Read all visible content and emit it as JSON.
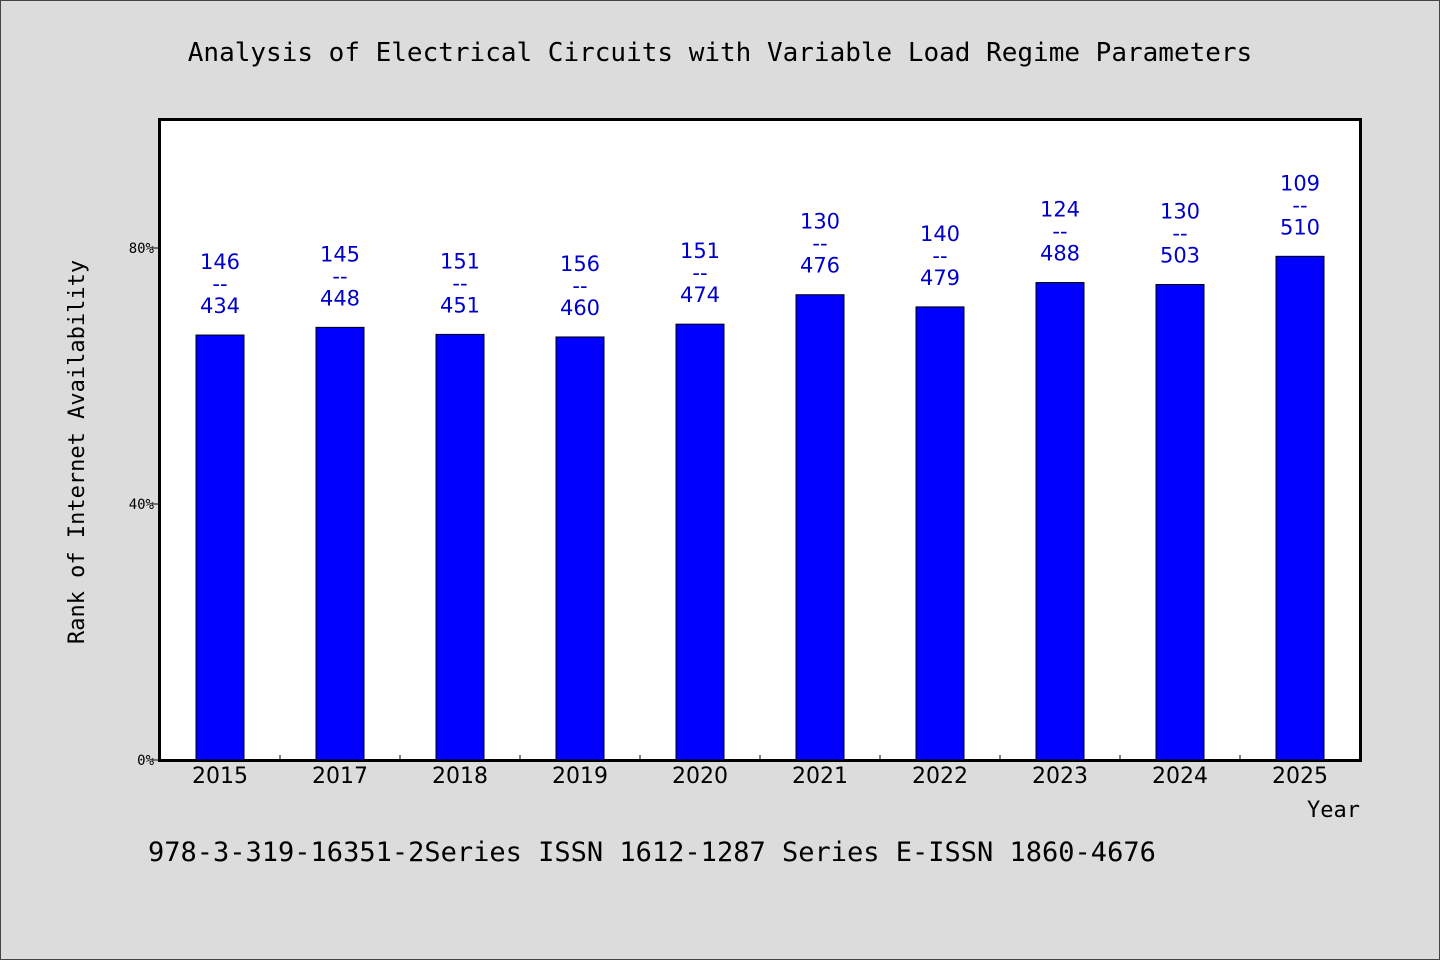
{
  "colors": {
    "bar": "#0000ff",
    "data_label": "#0000cc",
    "background": "#dcdcdc",
    "plot_area": "#ffffff"
  },
  "footer_text": "978-3-319-16351-2Series ISSN 1612-1287 Series E-ISSN 1860-4676",
  "chart_data": {
    "type": "bar",
    "title": "Analysis of Electrical Circuits with Variable Load Regime Parameters",
    "xlabel": "Year",
    "ylabel": "Rank of Internet Availability",
    "categories": [
      "2015",
      "2017",
      "2018",
      "2019",
      "2020",
      "2021",
      "2022",
      "2023",
      "2024",
      "2025"
    ],
    "values": [
      66.4,
      67.6,
      66.5,
      66.1,
      68.1,
      72.7,
      70.8,
      74.6,
      74.3,
      78.7
    ],
    "data_labels": [
      [
        "146",
        "--",
        "434"
      ],
      [
        "145",
        "--",
        "448"
      ],
      [
        "151",
        "--",
        "451"
      ],
      [
        "156",
        "--",
        "460"
      ],
      [
        "151",
        "--",
        "474"
      ],
      [
        "130",
        "--",
        "476"
      ],
      [
        "140",
        "--",
        "479"
      ],
      [
        "124",
        "--",
        "488"
      ],
      [
        "130",
        "--",
        "503"
      ],
      [
        "109",
        "--",
        "510"
      ]
    ],
    "y_ticks": [
      {
        "value": 0,
        "label": "0%"
      },
      {
        "value": 40,
        "label": "40%"
      },
      {
        "value": 80,
        "label": "80%"
      }
    ],
    "ylim": [
      0,
      100
    ],
    "grid": false,
    "legend": "none"
  }
}
